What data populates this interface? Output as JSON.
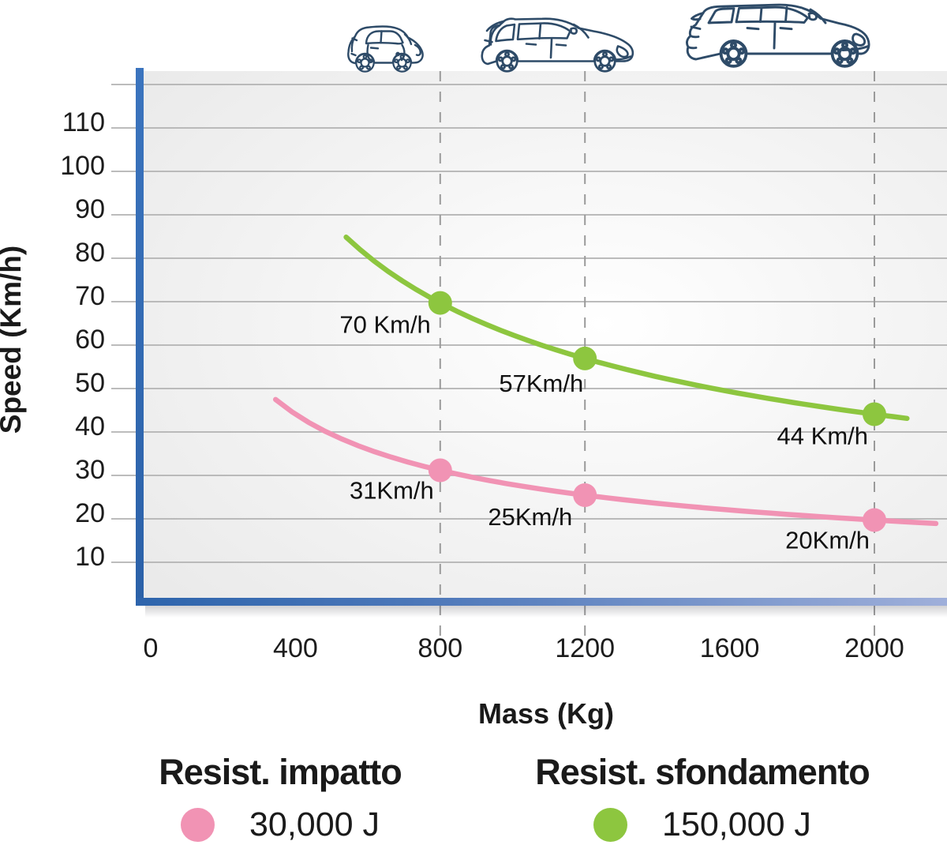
{
  "chart_data": {
    "type": "line",
    "title": "",
    "xlabel": "Mass (Kg)",
    "ylabel": "Speed (Km/h)",
    "xlim": [
      0,
      2200
    ],
    "ylim": [
      0,
      122
    ],
    "xticks": [
      0,
      400,
      800,
      1200,
      1600,
      2000
    ],
    "yticks": [
      110,
      100,
      90,
      80,
      70,
      60,
      50,
      40,
      30,
      20,
      10
    ],
    "y_gridlines": [
      120,
      110,
      100,
      90,
      80,
      70,
      60,
      50,
      40,
      30,
      20,
      10
    ],
    "grid": "horizontal",
    "legend_position": "bottom",
    "guide_masses": [
      800,
      1200,
      2000
    ],
    "series": [
      {
        "id": "impatto",
        "name": "Resist. impatto",
        "energy_j": 30000,
        "energy_label": "30,000 J",
        "color": "#F193B4",
        "mass_domain": [
          345,
          2170
        ],
        "points": [
          {
            "mass": 800,
            "speed": 31,
            "label": "31Km/h",
            "label_dx": -8,
            "label_dy": 36
          },
          {
            "mass": 1200,
            "speed": 25,
            "label": "25Km/h",
            "label_dx": -16,
            "label_dy": 38
          },
          {
            "mass": 2000,
            "speed": 20,
            "label": "20Km/h",
            "label_dx": -6,
            "label_dy": 36
          }
        ]
      },
      {
        "id": "sfondamento",
        "name": "Resist. sfondamento",
        "energy_j": 150000,
        "energy_label": "150,000 J",
        "color": "#8DC63F",
        "mass_domain": [
          540,
          2090
        ],
        "points": [
          {
            "mass": 800,
            "speed": 70,
            "label": "70 Km/h",
            "label_dx": -12,
            "label_dy": 38
          },
          {
            "mass": 1200,
            "speed": 57,
            "label": "57Km/h",
            "label_dx": -2,
            "label_dy": 42
          },
          {
            "mass": 2000,
            "speed": 44,
            "label": "44 Km/h",
            "label_dx": -8,
            "label_dy": 38
          }
        ]
      }
    ]
  },
  "legend": {
    "items": [
      {
        "title": "Resist. impatto",
        "value": "30,000 J",
        "color": "#F193B4"
      },
      {
        "title": "Resist. sfondamento",
        "value": "150,000 J",
        "color": "#8DC63F"
      }
    ]
  },
  "icons": {
    "cars": [
      "small-city-car",
      "hatchback-car",
      "suv-car"
    ]
  },
  "colors": {
    "axis_blue": "#2F6AB2",
    "axis_blue_light": "#9FAFDA",
    "curve_pink": "#F193B4",
    "curve_green": "#8DC63F",
    "car_outline": "#2E4B68",
    "gridline": "#B2B2B2",
    "guide_dash": "#9A9A9A",
    "text": "#1A1A1A"
  }
}
